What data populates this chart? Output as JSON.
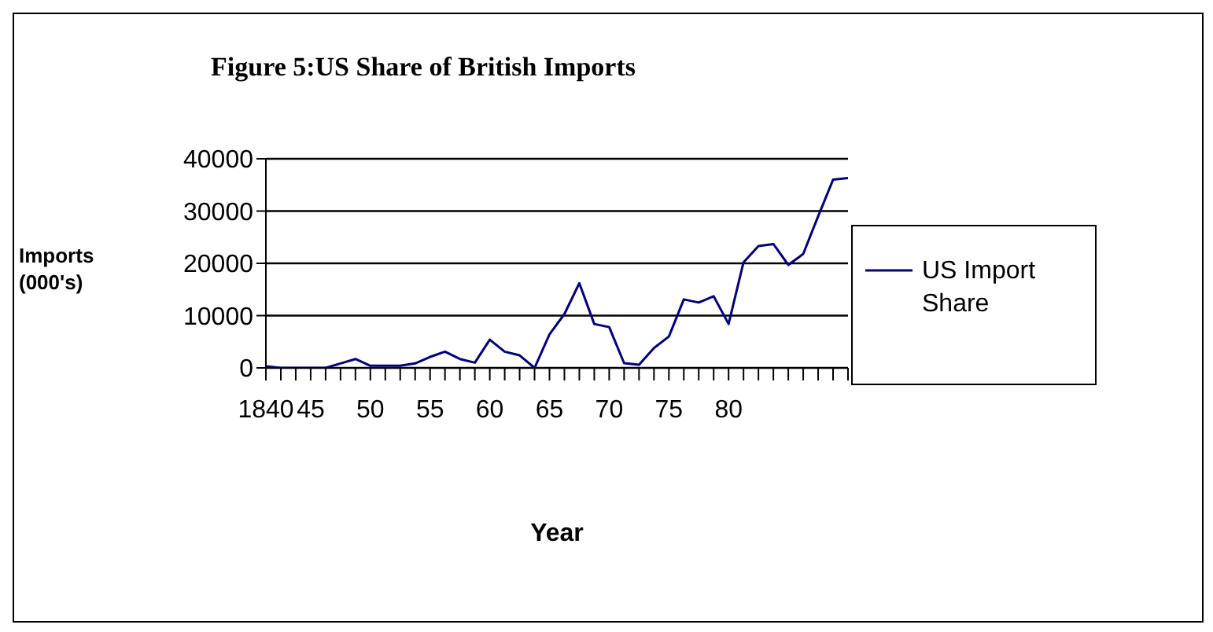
{
  "chart_data": {
    "type": "line",
    "title": "Figure 5:US Share of British Imports",
    "xlabel": "Year",
    "ylabel": "Imports (000's)",
    "categories": [
      "1840",
      null,
      null,
      "45",
      null,
      null,
      null,
      "50",
      null,
      null,
      null,
      "55",
      null,
      null,
      null,
      "60",
      null,
      null,
      null,
      "65",
      null,
      null,
      null,
      "70",
      null,
      null,
      null,
      "75",
      null,
      null,
      null,
      "80",
      null,
      null,
      null,
      null,
      null,
      null,
      null,
      null
    ],
    "series": [
      {
        "name": "US Import Share",
        "color": "#000080",
        "values": [
          300,
          0,
          0,
          0,
          0,
          850,
          1700,
          400,
          400,
          400,
          850,
          2100,
          3100,
          1700,
          1000,
          5400,
          3100,
          2400,
          0,
          6400,
          10300,
          16200,
          8400,
          7800,
          900,
          600,
          3800,
          6000,
          13100,
          12500,
          13700,
          8400,
          20200,
          23300,
          23700,
          19700,
          21800,
          29000,
          36000,
          36300
        ]
      }
    ],
    "ylim": [
      0,
      40000
    ],
    "yticks": [
      0,
      10000,
      20000,
      30000,
      40000
    ],
    "grid": "y",
    "legend": "right",
    "marker": "none",
    "line_style": "solid"
  }
}
